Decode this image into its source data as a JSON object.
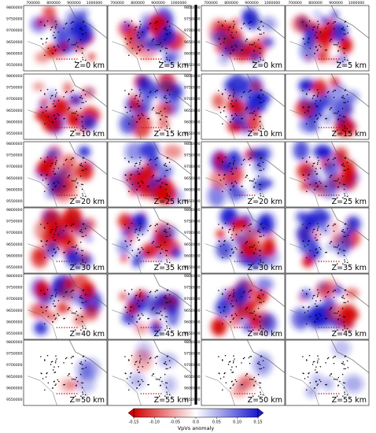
{
  "figure": {
    "x_ticks": [
      "700000",
      "800000",
      "900000",
      "1000000"
    ],
    "y_ticks": [
      "9800000",
      "9750000",
      "9700000",
      "9650000",
      "9600000",
      "9550000"
    ],
    "left_panels": [
      "Z=0 km",
      "Z=5 km",
      "Z=10 km",
      "Z=15 km",
      "Z=20 km",
      "Z=25 km",
      "Z=30 km",
      "Z=35 km",
      "Z=40 km",
      "Z=45 km",
      "Z=50 km",
      "Z=55 km"
    ],
    "right_panels": [
      "Z=0 km",
      "Z=5 km",
      "Z=10 km",
      "Z=15 km",
      "Z=20 km",
      "Z=25 km",
      "Z=30 km",
      "Z=35 km",
      "Z=40 km",
      "Z=45 km",
      "Z=50 km",
      "Z=55 km"
    ],
    "colorbar": {
      "label": "VpVs anomaly",
      "ticks": [
        "-0.15",
        "-0.10",
        "-0.05",
        "0.0",
        "0.05",
        "0.10",
        "0.15"
      ],
      "colormap": [
        "#d40000",
        "#ffffff",
        "#1a1acc"
      ]
    }
  }
}
